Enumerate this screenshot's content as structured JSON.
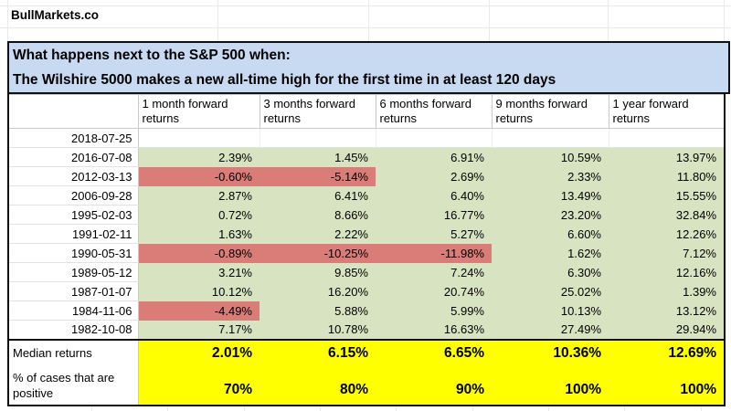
{
  "brand": "BullMarkets.co",
  "title": {
    "line1": "What happens next to the S&P 500 when:",
    "line2": "The Wilshire 5000 makes a new all-time high for the first time in at least 120 days"
  },
  "colors": {
    "positive_fill": "#d8e3c2",
    "negative_fill": "#da7d78",
    "summary_fill": "#ffff00",
    "title_fill": "#c7daf2"
  },
  "table": {
    "columns": [
      "1 month forward returns",
      "3 months forward returns",
      "6 months forward returns",
      "9 months forward returns",
      "1 year forward returns"
    ],
    "signal_row": {
      "date": "2018-07-25",
      "values": [
        "",
        "",
        "",
        "",
        ""
      ]
    },
    "rows": [
      {
        "date": "2016-07-08",
        "values": [
          "2.39%",
          "1.45%",
          "6.91%",
          "10.59%",
          "13.97%"
        ]
      },
      {
        "date": "2012-03-13",
        "values": [
          "-0.60%",
          "-5.14%",
          "2.69%",
          "2.33%",
          "11.80%"
        ]
      },
      {
        "date": "2006-09-28",
        "values": [
          "2.87%",
          "6.41%",
          "6.40%",
          "13.49%",
          "15.55%"
        ]
      },
      {
        "date": "1995-02-03",
        "values": [
          "0.72%",
          "8.66%",
          "16.77%",
          "23.20%",
          "32.84%"
        ]
      },
      {
        "date": "1991-02-11",
        "values": [
          "1.63%",
          "2.22%",
          "5.27%",
          "6.60%",
          "12.26%"
        ]
      },
      {
        "date": "1990-05-31",
        "values": [
          "-0.89%",
          "-10.25%",
          "-11.98%",
          "1.62%",
          "7.12%"
        ]
      },
      {
        "date": "1989-05-12",
        "values": [
          "3.21%",
          "9.85%",
          "7.24%",
          "6.30%",
          "12.16%"
        ]
      },
      {
        "date": "1987-01-07",
        "values": [
          "10.12%",
          "16.20%",
          "20.74%",
          "25.02%",
          "1.39%"
        ]
      },
      {
        "date": "1984-11-06",
        "values": [
          "-4.49%",
          "5.88%",
          "5.99%",
          "10.13%",
          "13.12%"
        ]
      },
      {
        "date": "1982-10-08",
        "values": [
          "7.17%",
          "10.78%",
          "16.63%",
          "27.49%",
          "29.94%"
        ]
      }
    ],
    "summary": [
      {
        "label": "Median returns",
        "values": [
          "2.01%",
          "6.15%",
          "6.65%",
          "10.36%",
          "12.69%"
        ]
      },
      {
        "label": "% of cases that are positive",
        "values": [
          "70%",
          "80%",
          "90%",
          "100%",
          "100%"
        ]
      }
    ]
  }
}
